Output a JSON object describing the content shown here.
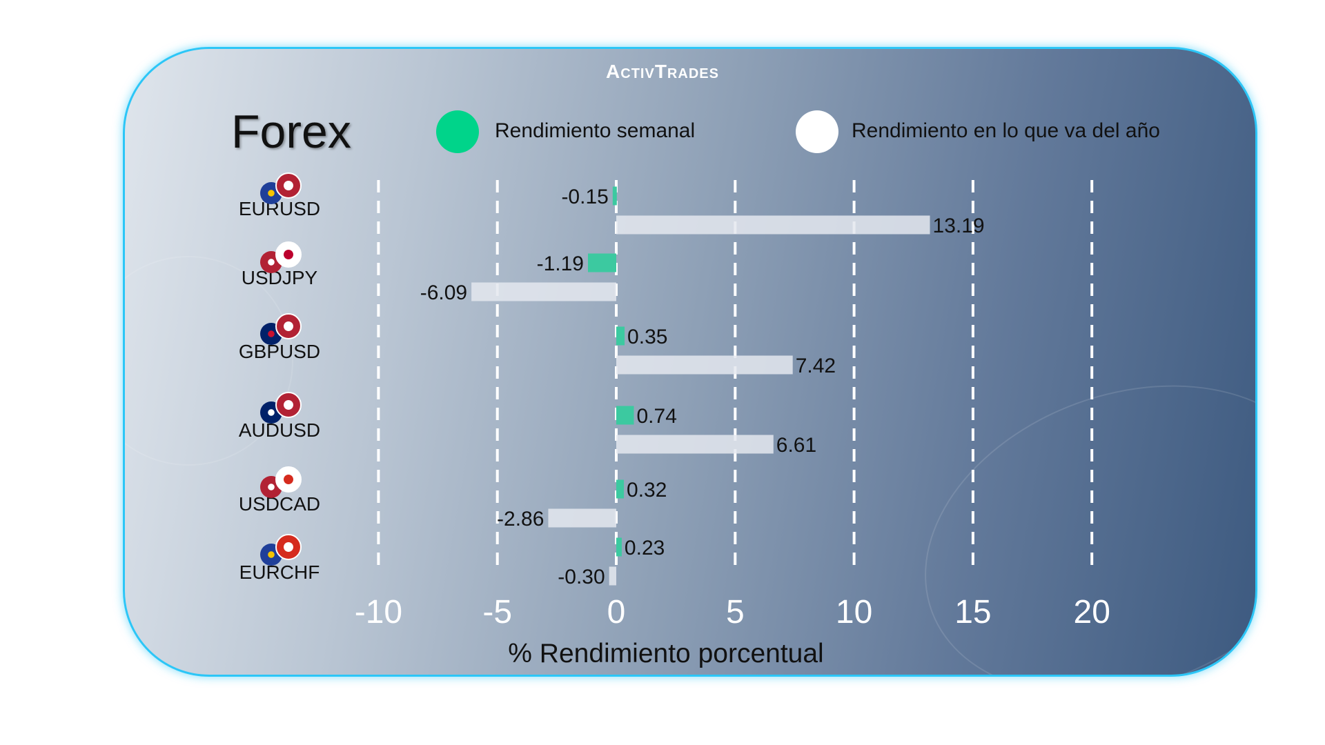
{
  "logo": "ActivTrades",
  "title": "Forex",
  "legend": [
    {
      "label": "Rendimiento semanal",
      "color": "#00d48a"
    },
    {
      "label": "Rendimiento en lo que va del año",
      "color": "#ffffff"
    }
  ],
  "chart_data": {
    "type": "bar",
    "orientation": "horizontal",
    "categories": [
      "EURUSD",
      "USDJPY",
      "GBPUSD",
      "AUDUSD",
      "USDCAD",
      "EURCHF"
    ],
    "series": [
      {
        "name": "Rendimiento semanal",
        "color": "#3cc9a0",
        "values": [
          -0.15,
          -1.19,
          0.35,
          0.74,
          0.32,
          0.23
        ],
        "labels": [
          "-0.15",
          "-1.19",
          "0.35",
          "0.74",
          "0.32",
          "0.23"
        ]
      },
      {
        "name": "Rendimiento en lo que va del año",
        "color": "#e4e8ee",
        "values": [
          13.19,
          -6.09,
          7.42,
          6.61,
          -2.86,
          -0.3
        ],
        "labels": [
          "13.19",
          "-6.09",
          "7.42",
          "6.61",
          "-2.86",
          "-0.30"
        ]
      }
    ],
    "xlabel": "% Rendimiento porcentual",
    "xlim": [
      -10,
      20
    ],
    "xticks": [
      "-10",
      "-5",
      "0",
      "5",
      "10",
      "15",
      "20"
    ],
    "grid": "vertical dashed",
    "legend": "top"
  },
  "flags": [
    [
      "eu",
      "us"
    ],
    [
      "us",
      "jp"
    ],
    [
      "gb",
      "us"
    ],
    [
      "au",
      "us"
    ],
    [
      "us",
      "ca"
    ],
    [
      "eu",
      "ch"
    ]
  ]
}
